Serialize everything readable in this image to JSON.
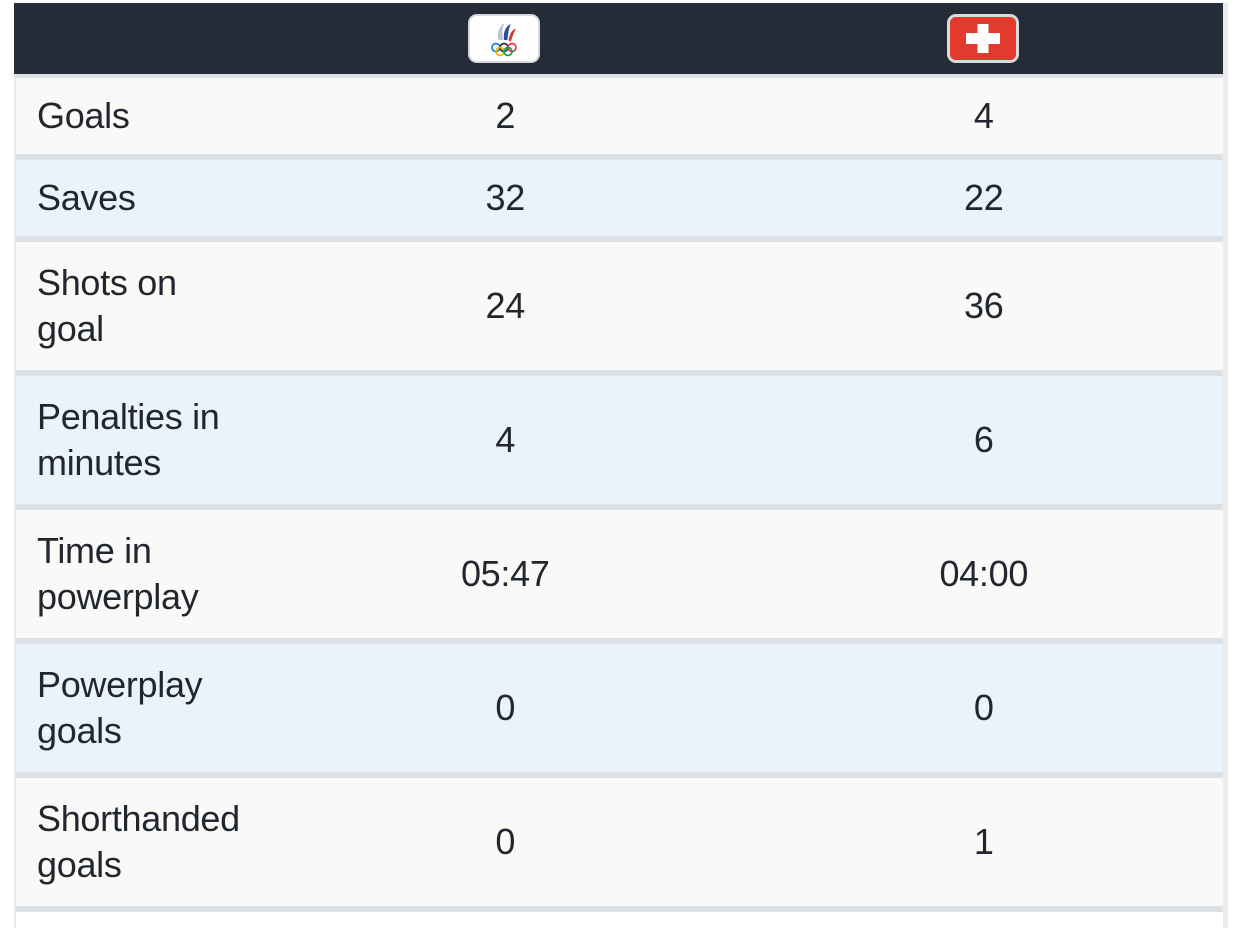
{
  "header": {
    "home_flag_icon": "roc-olympic-flag-icon",
    "away_flag_icon": "switzerland-flag-icon"
  },
  "stats": [
    {
      "label": "Goals",
      "lines": [
        "Goals"
      ],
      "home": "2",
      "away": "4"
    },
    {
      "label": "Saves",
      "lines": [
        "Saves"
      ],
      "home": "32",
      "away": "22"
    },
    {
      "label": "Shots on goal",
      "lines": [
        "Shots on",
        "goal"
      ],
      "home": "24",
      "away": "36"
    },
    {
      "label": "Penalties in minutes",
      "lines": [
        "Penalties in",
        "minutes"
      ],
      "home": "4",
      "away": "6"
    },
    {
      "label": "Time in powerplay",
      "lines": [
        "Time in",
        "powerplay"
      ],
      "home": "05:47",
      "away": "04:00"
    },
    {
      "label": "Powerplay goals",
      "lines": [
        "Powerplay",
        "goals"
      ],
      "home": "0",
      "away": "0"
    },
    {
      "label": "Shorthanded goals",
      "lines": [
        "Shorthanded",
        "goals"
      ],
      "home": "0",
      "away": "1"
    }
  ],
  "colors": {
    "header_bg": "#262b38",
    "row_light": "#f9f9f7",
    "row_blue": "#ebf3fa",
    "separator": "#dde1e6",
    "header_separator": "#dfe3e7",
    "text": "#22262e",
    "swiss_red": "#e23b2e",
    "page_bg": "#ffffff",
    "right_strip": "#eaecee",
    "flag_border": "#d5d8dc"
  }
}
